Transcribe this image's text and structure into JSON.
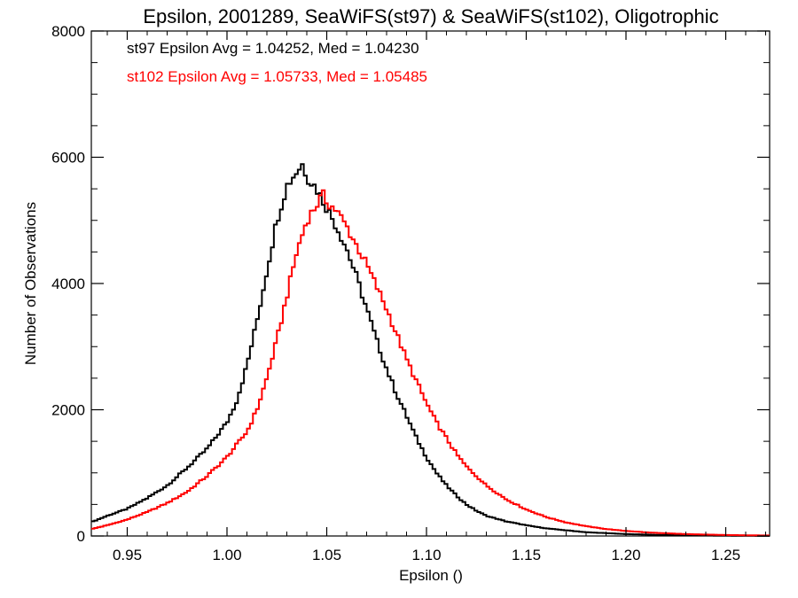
{
  "chart_data": {
    "type": "line",
    "title": "Epsilon, 2001289, SeaWiFS(st97) & SeaWiFS(st102), Oligotrophic",
    "xlabel": "Epsilon ()",
    "ylabel": "Number of Observations",
    "xlim": [
      0.932,
      1.272
    ],
    "ylim": [
      0,
      8000
    ],
    "xticks": [
      0.95,
      1.0,
      1.05,
      1.1,
      1.15,
      1.2,
      1.25
    ],
    "xtick_labels": [
      "0.95",
      "1.00",
      "1.05",
      "1.10",
      "1.15",
      "1.20",
      "1.25"
    ],
    "yticks": [
      0,
      2000,
      4000,
      6000,
      8000
    ],
    "ytick_labels": [
      "0",
      "2000",
      "4000",
      "6000",
      "8000"
    ],
    "grid": false,
    "legend": "none",
    "series": [
      {
        "color": "#000000",
        "x": [
          0.932,
          0.94,
          0.95,
          0.96,
          0.97,
          0.98,
          0.99,
          1.0,
          1.005,
          1.01,
          1.015,
          1.02,
          1.025,
          1.03,
          1.035,
          1.038,
          1.04,
          1.045,
          1.05,
          1.055,
          1.06,
          1.065,
          1.07,
          1.075,
          1.08,
          1.085,
          1.09,
          1.095,
          1.1,
          1.105,
          1.11,
          1.115,
          1.12,
          1.125,
          1.13,
          1.14,
          1.15,
          1.16,
          1.17,
          1.18,
          1.19,
          1.2,
          1.21,
          1.22,
          1.23,
          1.24,
          1.25,
          1.26,
          1.272
        ],
        "y": [
          220,
          320,
          430,
          600,
          800,
          1080,
          1380,
          1800,
          2150,
          2700,
          3400,
          4200,
          5000,
          5550,
          5780,
          5900,
          5700,
          5500,
          5200,
          4900,
          4550,
          4100,
          3600,
          3100,
          2650,
          2250,
          1900,
          1550,
          1250,
          1000,
          800,
          640,
          500,
          400,
          320,
          230,
          170,
          120,
          90,
          60,
          45,
          30,
          22,
          15,
          10,
          7,
          5,
          3,
          2
        ]
      },
      {
        "color": "#ff0000",
        "x": [
          0.932,
          0.94,
          0.95,
          0.96,
          0.97,
          0.98,
          0.99,
          1.0,
          1.01,
          1.015,
          1.02,
          1.025,
          1.03,
          1.035,
          1.04,
          1.045,
          1.048,
          1.05,
          1.055,
          1.06,
          1.065,
          1.07,
          1.075,
          1.08,
          1.085,
          1.09,
          1.095,
          1.1,
          1.105,
          1.11,
          1.115,
          1.12,
          1.13,
          1.14,
          1.15,
          1.16,
          1.17,
          1.18,
          1.19,
          1.2,
          1.21,
          1.22,
          1.23,
          1.24,
          1.25,
          1.26,
          1.272
        ],
        "y": [
          110,
          170,
          260,
          380,
          520,
          700,
          950,
          1250,
          1650,
          2000,
          2500,
          3100,
          3800,
          4500,
          5000,
          5250,
          5400,
          5300,
          5150,
          4900,
          4600,
          4300,
          3950,
          3600,
          3200,
          2800,
          2450,
          2100,
          1800,
          1550,
          1300,
          1100,
          800,
          580,
          420,
          300,
          215,
          155,
          110,
          80,
          58,
          42,
          30,
          22,
          16,
          11,
          8
        ]
      }
    ],
    "annotations": [
      {
        "text": "st97 Epsilon Avg = 1.04252, Med = 1.04230",
        "color": "#000000"
      },
      {
        "text": "st102 Epsilon Avg = 1.05733, Med = 1.05485",
        "color": "#ff0000"
      }
    ]
  }
}
